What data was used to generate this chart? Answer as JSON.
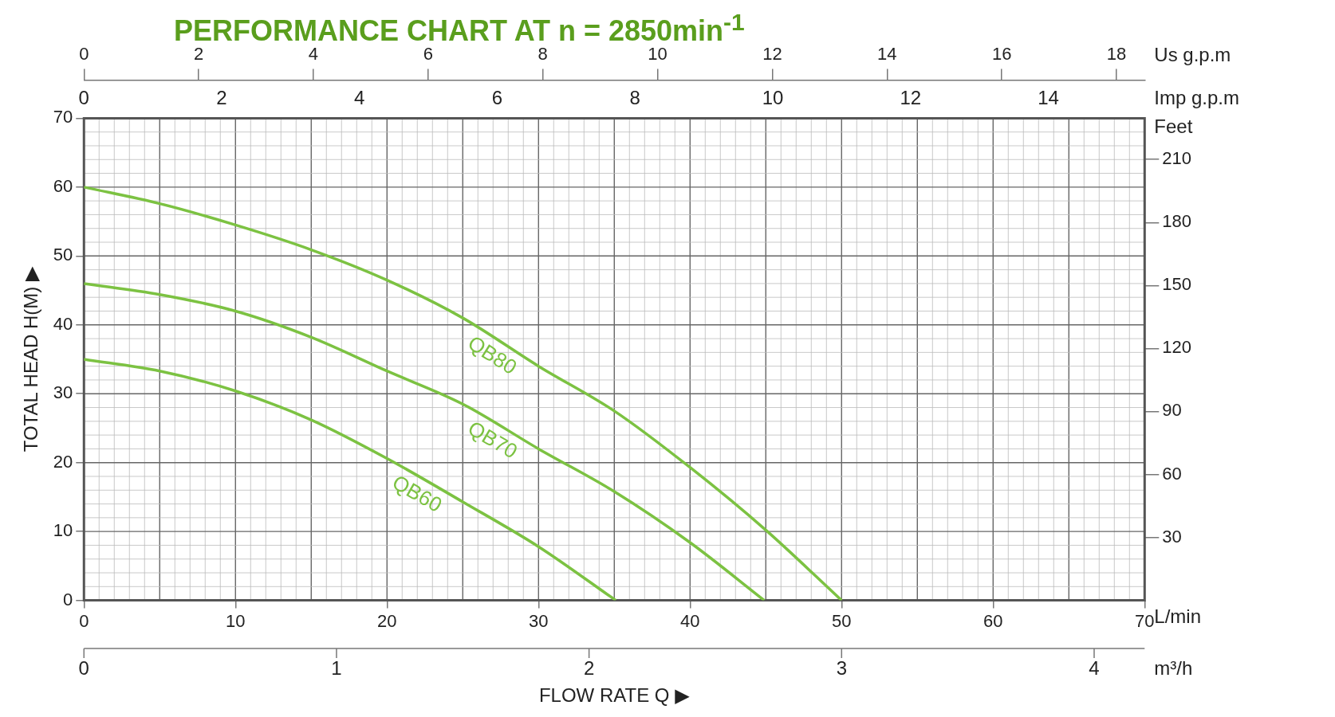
{
  "chart_data": {
    "type": "line",
    "title": "PERFORMANCE CHART AT n = 2850min$^{-1}$",
    "xlabel": "L/min",
    "ylabel": "TOTAL HEAD H(M) ▶",
    "y2label": "Feet",
    "x2label": "Us g.p.m",
    "annotations": [
      "FLOW RATE Q ▶",
      "0",
      "2",
      "4",
      "6",
      "8",
      "10",
      "12",
      "14",
      "Imp g.p.m",
      "0",
      "1",
      "2",
      "3",
      "4",
      "m³/h"
    ],
    "xlim": [
      0,
      70
    ],
    "xticks": [
      0,
      10,
      20,
      30,
      40,
      50,
      60,
      70
    ],
    "ylim": [
      0,
      70
    ],
    "yticks": [
      0,
      10,
      20,
      30,
      40,
      50,
      60,
      70
    ],
    "y2lim": [
      0,
      229.66
    ],
    "y2ticks": [
      30,
      60,
      90,
      120,
      150,
      180,
      210
    ],
    "x2lim": [
      0,
      18.49
    ],
    "x2ticks": [
      0,
      2,
      4,
      6,
      8,
      10,
      12,
      14,
      16,
      18
    ],
    "grid": true,
    "legend": false,
    "marker": "none",
    "line_style": "solid",
    "series": [
      {
        "name": "QB80",
        "color": "#7cc242",
        "x": [
          0,
          5,
          10,
          15,
          20,
          25,
          30,
          35,
          40,
          45,
          50
        ],
        "values": [
          60,
          57.6,
          54.5,
          50.9,
          46.5,
          41,
          34,
          27.5,
          19.3,
          10.2,
          0
        ]
      },
      {
        "name": "QB70",
        "color": "#7cc242",
        "x": [
          0,
          5,
          10,
          15,
          20,
          25,
          30,
          35,
          40,
          44.9
        ],
        "values": [
          46,
          44.4,
          42,
          38.2,
          33.3,
          28.5,
          22,
          15.8,
          8.4,
          0
        ]
      },
      {
        "name": "QB60",
        "color": "#7cc242",
        "x": [
          0,
          5,
          10,
          15,
          20,
          25,
          30,
          35.1
        ],
        "values": [
          35,
          33.3,
          30.4,
          26.2,
          20.6,
          14.3,
          7.8,
          0
        ]
      }
    ]
  }
}
